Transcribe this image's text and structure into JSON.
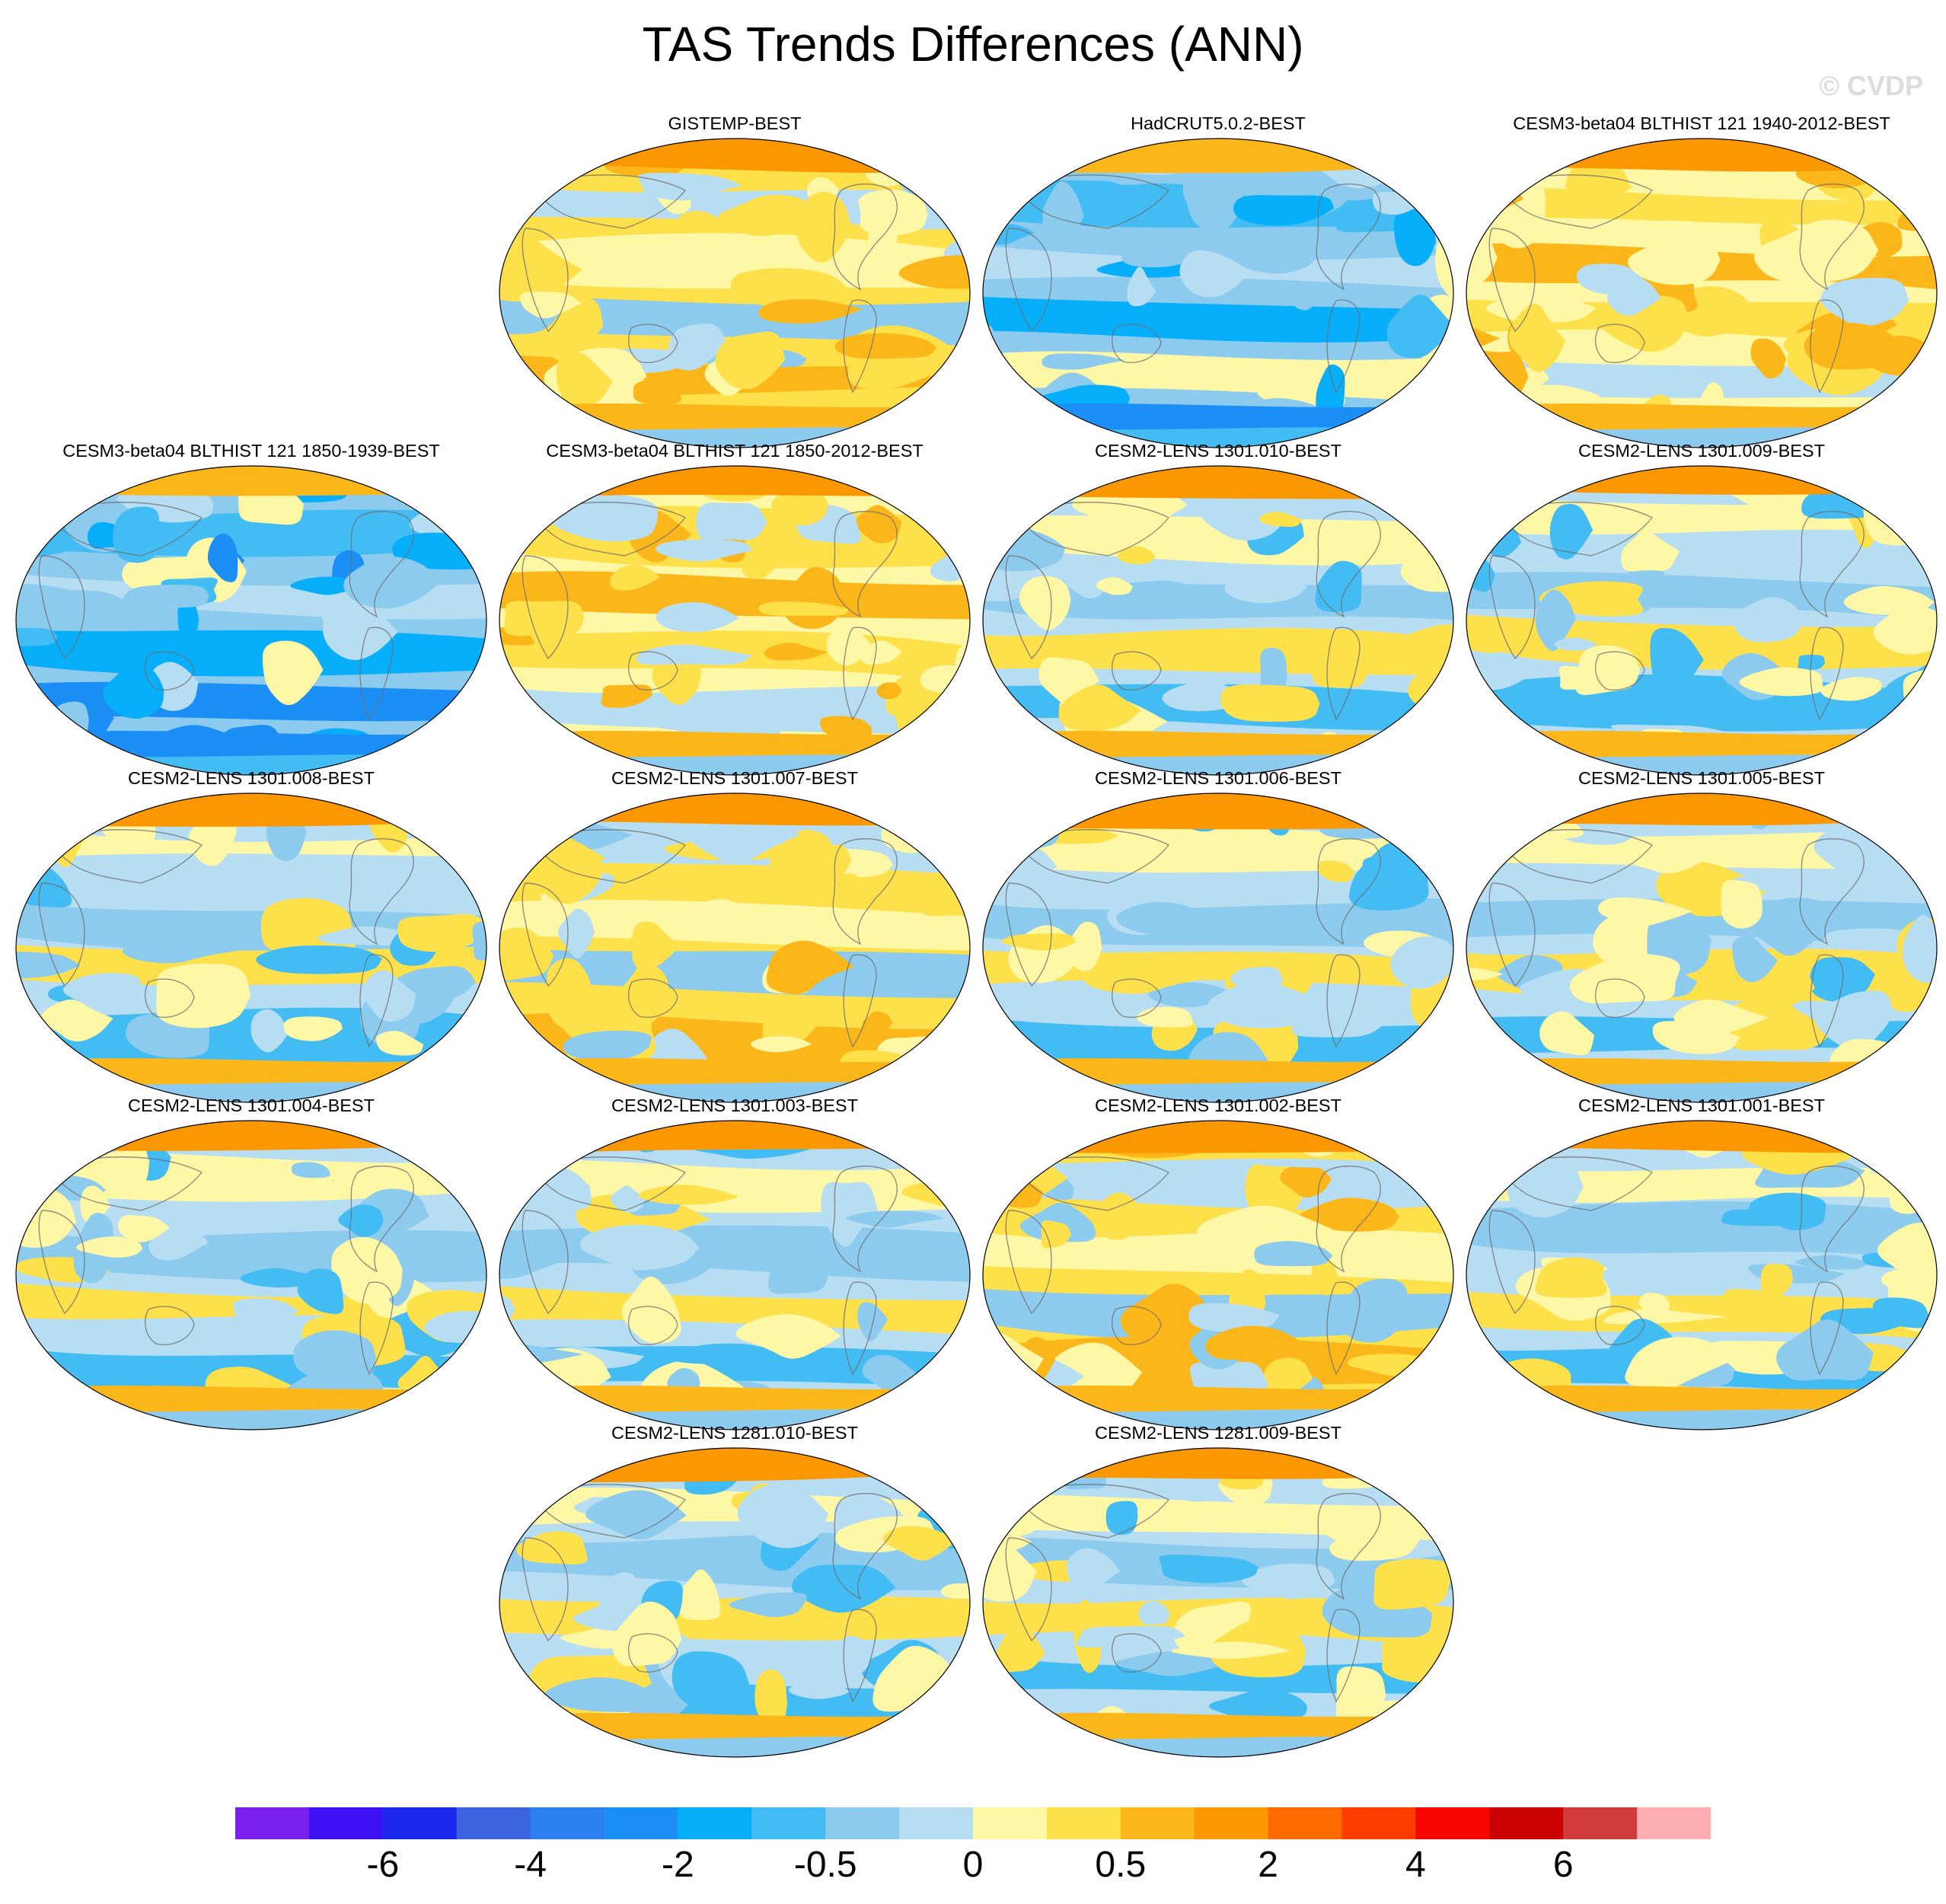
{
  "title": "TAS Trends Differences (ANN)",
  "watermark": "© CVDP",
  "map_panels": [
    {
      "label": "GISTEMP-BEST",
      "pattern": "mixed-warm"
    },
    {
      "label": "HadCRUT5.0.2-BEST",
      "pattern": "mostly-cool"
    },
    {
      "label": "CESM3-beta04 BLTHIST 121 1940-2012-BEST",
      "pattern": "warm"
    },
    {
      "label": "CESM3-beta04 BLTHIST 121 1850-1939-BEST",
      "pattern": "cool"
    },
    {
      "label": "CESM3-beta04 BLTHIST 121 1850-2012-BEST",
      "pattern": "warm"
    },
    {
      "label": "CESM2-LENS 1301.010-BEST",
      "pattern": "mixed"
    },
    {
      "label": "CESM2-LENS 1301.009-BEST",
      "pattern": "mixed"
    },
    {
      "label": "CESM2-LENS 1301.008-BEST",
      "pattern": "mixed"
    },
    {
      "label": "CESM2-LENS 1301.007-BEST",
      "pattern": "mixed-warm"
    },
    {
      "label": "CESM2-LENS 1301.006-BEST",
      "pattern": "mixed"
    },
    {
      "label": "CESM2-LENS 1301.005-BEST",
      "pattern": "mixed"
    },
    {
      "label": "CESM2-LENS 1301.004-BEST",
      "pattern": "mixed"
    },
    {
      "label": "CESM2-LENS 1301.003-BEST",
      "pattern": "mixed"
    },
    {
      "label": "CESM2-LENS 1301.002-BEST",
      "pattern": "mixed-warm"
    },
    {
      "label": "CESM2-LENS 1301.001-BEST",
      "pattern": "mixed"
    },
    {
      "label": "CESM2-LENS 1281.010-BEST",
      "pattern": "mixed"
    },
    {
      "label": "CESM2-LENS 1281.009-BEST",
      "pattern": "mixed"
    }
  ],
  "colorbar": {
    "colors": [
      "#7a1fee",
      "#3d10f5",
      "#1a28ee",
      "#3a63dd",
      "#2c7fef",
      "#1c8ff7",
      "#07aefa",
      "#42bcf2",
      "#8ccbee",
      "#b6ddf2",
      "#fdf7a6",
      "#fde04a",
      "#fbb61a",
      "#fb9700",
      "#fd6b00",
      "#fd3c00",
      "#f80500",
      "#cb0000",
      "#d03c3c",
      "#fdaeb1"
    ],
    "labels": [
      "-6",
      "-4",
      "-2",
      "-0.5",
      "0",
      "0.5",
      "2",
      "4",
      "6"
    ]
  }
}
